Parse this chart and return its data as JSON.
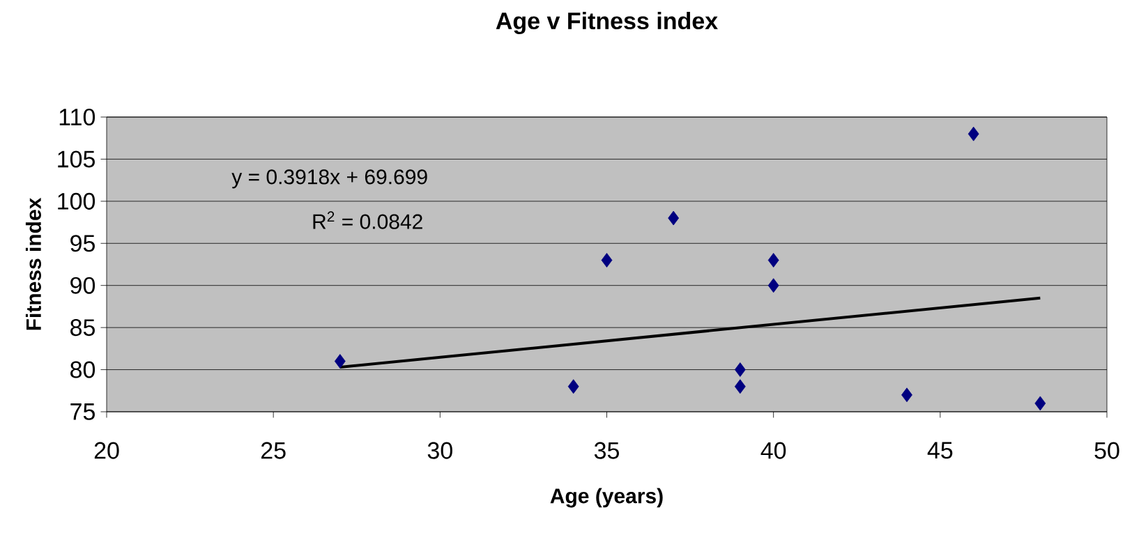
{
  "chart_data": {
    "type": "scatter",
    "title": "Age v Fitness index",
    "xlabel": "Age (years)",
    "ylabel": "Fitness index",
    "xlim": [
      20,
      50
    ],
    "xticks": [
      20,
      25,
      30,
      35,
      40,
      45,
      50
    ],
    "ylim": [
      75,
      110
    ],
    "yticks": [
      75,
      80,
      85,
      90,
      95,
      100,
      105,
      110
    ],
    "grid": "y",
    "series": [
      {
        "color": "#000080",
        "marker": "diamond",
        "x": [
          27,
          34,
          35,
          37,
          39,
          39,
          40,
          40,
          44,
          46,
          48
        ],
        "values": [
          81,
          78,
          93,
          98,
          80,
          78,
          93,
          90,
          77,
          108,
          76
        ]
      },
      {
        "type": "line",
        "color": "#000000",
        "marker": "none",
        "line_style": "solid",
        "x": [
          27,
          48
        ],
        "values": [
          80.3,
          88.5
        ]
      }
    ],
    "annotations": [
      "y = 0.3918x + 69.699",
      "R$^{2}$ = 0.0842"
    ]
  }
}
